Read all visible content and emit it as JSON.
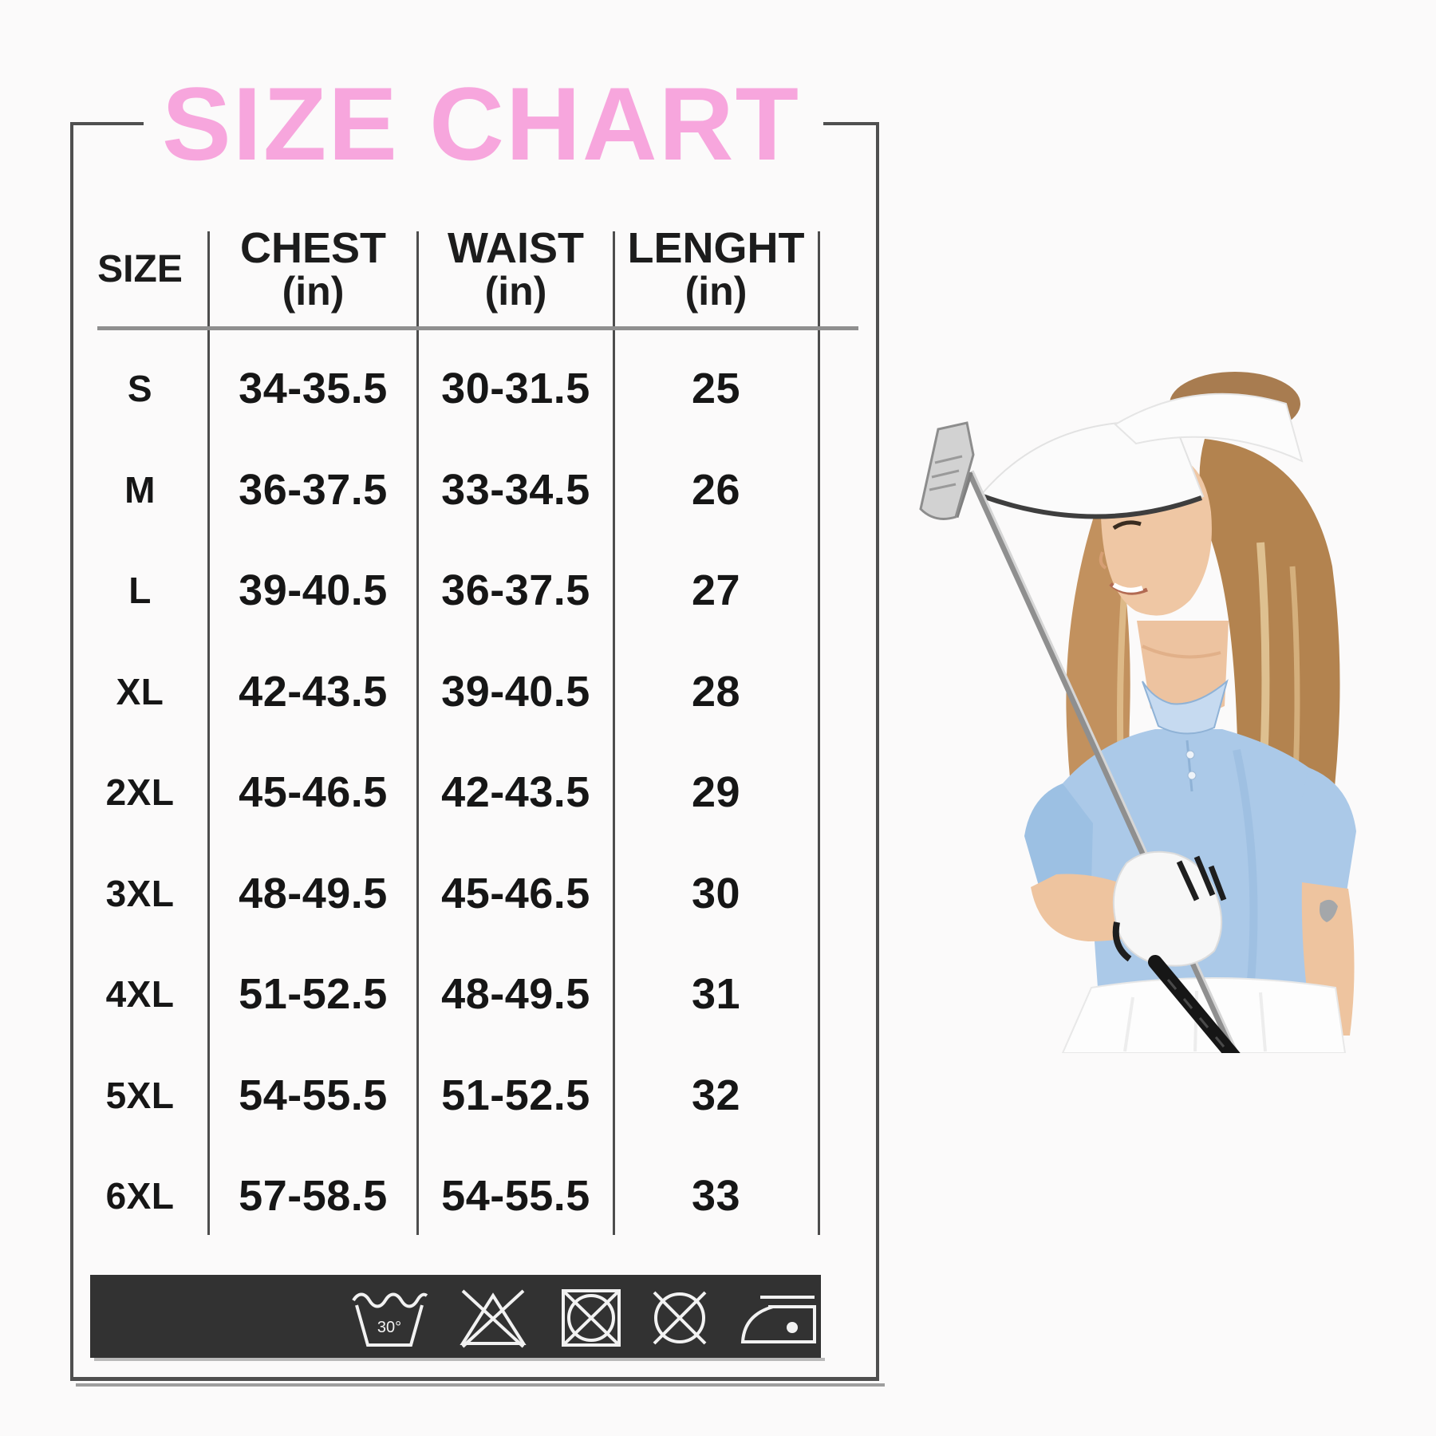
{
  "title": "SIZE CHART",
  "table": {
    "columns": [
      "SIZE",
      "CHEST",
      "WAIST",
      "LENGHT"
    ],
    "unit_label": "(in)",
    "rows": [
      {
        "size": "S",
        "chest": "34-35.5",
        "waist": "30-31.5",
        "length": "25"
      },
      {
        "size": "M",
        "chest": "36-37.5",
        "waist": "33-34.5",
        "length": "26"
      },
      {
        "size": "L",
        "chest": "39-40.5",
        "waist": "36-37.5",
        "length": "27"
      },
      {
        "size": "XL",
        "chest": "42-43.5",
        "waist": "39-40.5",
        "length": "28"
      },
      {
        "size": "2XL",
        "chest": "45-46.5",
        "waist": "42-43.5",
        "length": "29"
      },
      {
        "size": "3XL",
        "chest": "48-49.5",
        "waist": "45-46.5",
        "length": "30"
      },
      {
        "size": "4XL",
        "chest": "51-52.5",
        "waist": "48-49.5",
        "length": "31"
      },
      {
        "size": "5XL",
        "chest": "54-55.5",
        "waist": "51-52.5",
        "length": "32"
      },
      {
        "size": "6XL",
        "chest": "57-58.5",
        "waist": "54-55.5",
        "length": "33"
      }
    ]
  },
  "care_bar": {
    "icons": [
      {
        "name": "machine-wash-30-icon",
        "label": "30°"
      },
      {
        "name": "do-not-bleach-icon"
      },
      {
        "name": "do-not-tumble-dry-icon"
      },
      {
        "name": "do-not-dry-clean-icon"
      },
      {
        "name": "iron-low-icon"
      }
    ]
  },
  "photo": {
    "alt": "Smiling woman in white sun visor and light blue polo shirt holding a golf club"
  },
  "colors": {
    "title_pink": "#f7a6dd",
    "table_text": "#1c1c1c",
    "frame_gray": "#4f4f4f",
    "header_rule_gray": "#8f8f8f",
    "care_bar_bg": "#323232",
    "care_icon_white": "#f2f2f2",
    "polo_blue": "#abc9e8",
    "background": "#fbfafa"
  }
}
